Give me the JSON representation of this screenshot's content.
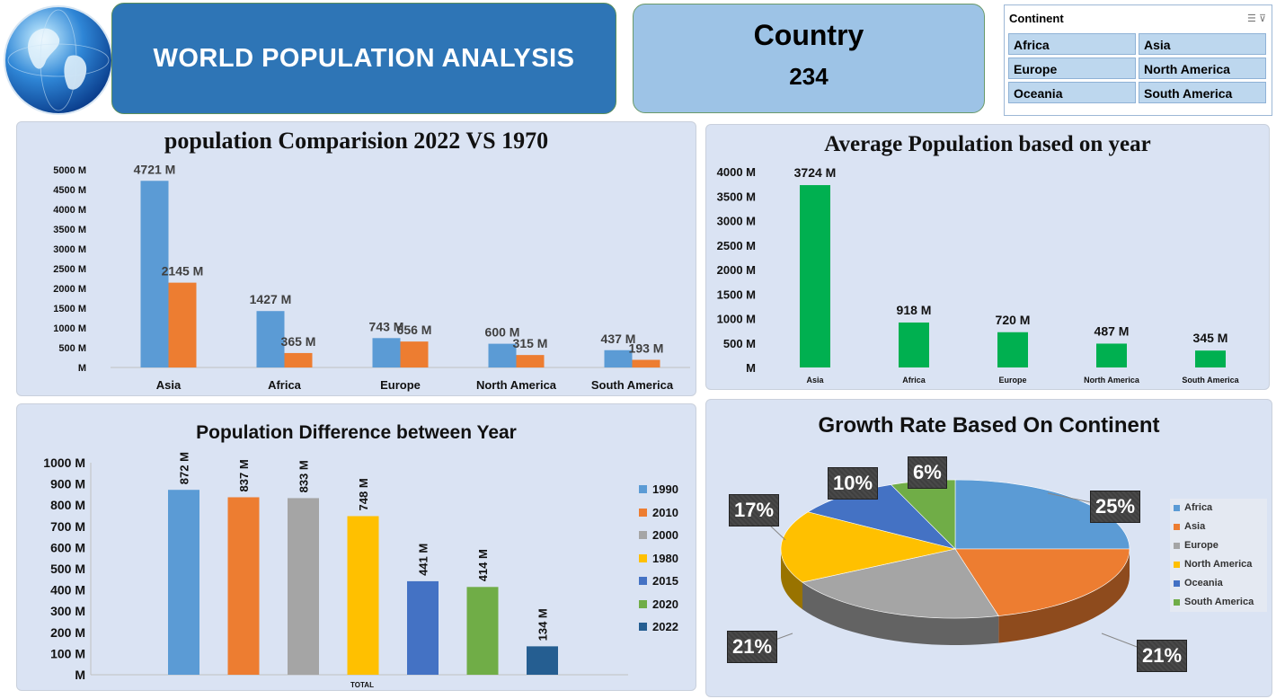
{
  "header": {
    "title": "WORLD POPULATION ANALYSIS",
    "card_label": "Country",
    "card_value": "234"
  },
  "slicer": {
    "title": "Continent",
    "items": [
      "Africa",
      "Asia",
      "Europe",
      "North America",
      "Oceania",
      "South America"
    ]
  },
  "chart_data": [
    {
      "type": "bar",
      "title": "population Comparision 2022 VS 1970",
      "categories": [
        "Asia",
        "Africa",
        "Europe",
        "North America",
        "South America"
      ],
      "series": [
        {
          "name": "2022",
          "values": [
            4721,
            1427,
            743,
            600,
            437
          ],
          "labels": [
            "4721 M",
            "1427 M",
            "743 M",
            "600 M",
            "437 M"
          ],
          "color": "#5b9bd5"
        },
        {
          "name": "1970",
          "values": [
            2145,
            365,
            656,
            315,
            193
          ],
          "labels": [
            "2145 M",
            "365 M",
            "656 M",
            "315 M",
            "193 M"
          ],
          "color": "#ed7d31"
        }
      ],
      "yticks": [
        "5000 M",
        "4500 M",
        "4000 M",
        "3500 M",
        "3000 M",
        "2500 M",
        "2000 M",
        "1500 M",
        "1000 M",
        "500 M",
        "M"
      ],
      "ylim": [
        0,
        5000
      ]
    },
    {
      "type": "bar",
      "title": "Average Population based on year",
      "categories": [
        "Asia",
        "Africa",
        "Europe",
        "North America",
        "South America"
      ],
      "values": [
        3724,
        918,
        720,
        487,
        345
      ],
      "labels": [
        "3724 M",
        "918 M",
        "720 M",
        "487 M",
        "345 M"
      ],
      "color": "#00b050",
      "yticks": [
        "4000 M",
        "3500 M",
        "3000 M",
        "2500 M",
        "2000 M",
        "1500 M",
        "1000 M",
        "500 M",
        "M"
      ],
      "ylim": [
        0,
        4000
      ]
    },
    {
      "type": "bar",
      "title": "Population Difference between Year",
      "xlabel": "TOTAL",
      "series": [
        {
          "name": "1990",
          "value": 872,
          "label": "872 M",
          "color": "#5b9bd5"
        },
        {
          "name": "2010",
          "value": 837,
          "label": "837 M",
          "color": "#ed7d31"
        },
        {
          "name": "2000",
          "value": 833,
          "label": "833 M",
          "color": "#a5a5a5"
        },
        {
          "name": "1980",
          "value": 748,
          "label": "748 M",
          "color": "#ffc000"
        },
        {
          "name": "2015",
          "value": 441,
          "label": "441 M",
          "color": "#4472c4"
        },
        {
          "name": "2020",
          "value": 414,
          "label": "414 M",
          "color": "#70ad47"
        },
        {
          "name": "2022",
          "value": 134,
          "label": "134 M",
          "color": "#255e91"
        }
      ],
      "yticks": [
        "1000 M",
        "900 M",
        "800 M",
        "700 M",
        "600 M",
        "500 M",
        "400 M",
        "300 M",
        "200 M",
        "100 M",
        "M"
      ],
      "ylim": [
        0,
        1000
      ],
      "legend": "right"
    },
    {
      "type": "pie",
      "title": "Growth Rate Based On Continent",
      "slices": [
        {
          "name": "Africa",
          "value": 25,
          "label": "25%",
          "color": "#5b9bd5"
        },
        {
          "name": "Asia",
          "value": 21,
          "label": "21%",
          "color": "#ed7d31"
        },
        {
          "name": "Europe",
          "value": 21,
          "label": "21%",
          "color": "#a5a5a5"
        },
        {
          "name": "North America",
          "value": 17,
          "label": "17%",
          "color": "#ffc000"
        },
        {
          "name": "Oceania",
          "value": 10,
          "label": "10%",
          "color": "#4472c4"
        },
        {
          "name": "South America",
          "value": 6,
          "label": "6%",
          "color": "#70ad47"
        }
      ],
      "legend": "right"
    }
  ]
}
